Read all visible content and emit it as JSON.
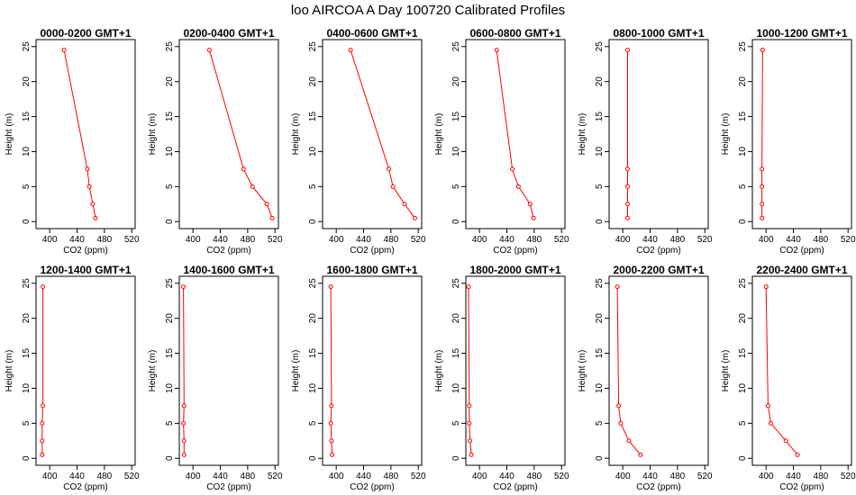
{
  "title": "loo AIRCOA A  Day 100720  Calibrated Profiles",
  "colors": {
    "series": "#ff0000",
    "axes": "#000000"
  },
  "chart_data": [
    {
      "type": "line",
      "title": "0000-0200 GMT+1",
      "xlabel": "CO2 (ppm)",
      "ylabel": "Height (m)",
      "xlim": [
        380,
        525
      ],
      "ylim": [
        -1,
        26
      ],
      "xticks": [
        400,
        440,
        480,
        520
      ],
      "yticks": [
        0,
        5,
        10,
        15,
        20,
        25
      ],
      "series": [
        {
          "points": [
            [
              421,
              24.5
            ],
            [
              455,
              7.5
            ],
            [
              458,
              5
            ],
            [
              463,
              2.5
            ],
            [
              467,
              0.5
            ]
          ]
        }
      ]
    },
    {
      "type": "line",
      "title": "0200-0400 GMT+1",
      "xlabel": "CO2 (ppm)",
      "ylabel": "Height (m)",
      "xlim": [
        380,
        525
      ],
      "ylim": [
        -1,
        26
      ],
      "xticks": [
        400,
        440,
        480,
        520
      ],
      "yticks": [
        0,
        5,
        10,
        15,
        20,
        25
      ],
      "series": [
        {
          "points": [
            [
              424,
              24.5
            ],
            [
              474,
              7.5
            ],
            [
              487,
              5
            ],
            [
              508,
              2.5
            ],
            [
              516,
              0.5
            ]
          ]
        }
      ]
    },
    {
      "type": "line",
      "title": "0400-0600 GMT+1",
      "xlabel": "CO2 (ppm)",
      "ylabel": "Height (m)",
      "xlim": [
        380,
        525
      ],
      "ylim": [
        -1,
        26
      ],
      "xticks": [
        400,
        440,
        480,
        520
      ],
      "yticks": [
        0,
        5,
        10,
        15,
        20,
        25
      ],
      "series": [
        {
          "points": [
            [
              421,
              24.5
            ],
            [
              477,
              7.5
            ],
            [
              483,
              5
            ],
            [
              500,
              2.5
            ],
            [
              515,
              0.5
            ]
          ]
        }
      ]
    },
    {
      "type": "line",
      "title": "0600-0800 GMT+1",
      "xlabel": "CO2 (ppm)",
      "ylabel": "Height (m)",
      "xlim": [
        380,
        525
      ],
      "ylim": [
        -1,
        26
      ],
      "xticks": [
        400,
        440,
        480,
        520
      ],
      "yticks": [
        0,
        5,
        10,
        15,
        20,
        25
      ],
      "series": [
        {
          "points": [
            [
              425,
              24.5
            ],
            [
              448,
              7.5
            ],
            [
              457,
              5
            ],
            [
              474,
              2.5
            ],
            [
              479,
              0.5
            ]
          ]
        }
      ]
    },
    {
      "type": "line",
      "title": "0800-1000 GMT+1",
      "xlabel": "CO2 (ppm)",
      "ylabel": "Height (m)",
      "xlim": [
        380,
        525
      ],
      "ylim": [
        -1,
        26
      ],
      "xticks": [
        400,
        440,
        480,
        520
      ],
      "yticks": [
        0,
        5,
        10,
        15,
        20,
        25
      ],
      "series": [
        {
          "points": [
            [
              407,
              24.5
            ],
            [
              407,
              7.5
            ],
            [
              407,
              5
            ],
            [
              407,
              2.5
            ],
            [
              407,
              0.5
            ]
          ]
        }
      ]
    },
    {
      "type": "line",
      "title": "1000-1200 GMT+1",
      "xlabel": "CO2 (ppm)",
      "ylabel": "Height (m)",
      "xlim": [
        380,
        525
      ],
      "ylim": [
        -1,
        26
      ],
      "xticks": [
        400,
        440,
        480,
        520
      ],
      "yticks": [
        0,
        5,
        10,
        15,
        20,
        25
      ],
      "series": [
        {
          "points": [
            [
              395,
              24.5
            ],
            [
              394,
              7.5
            ],
            [
              394,
              5
            ],
            [
              394,
              2.5
            ],
            [
              394,
              0.5
            ]
          ]
        }
      ]
    },
    {
      "type": "line",
      "title": "1200-1400 GMT+1",
      "xlabel": "CO2 (ppm)",
      "ylabel": "Height (m)",
      "xlim": [
        380,
        525
      ],
      "ylim": [
        -1,
        26
      ],
      "xticks": [
        400,
        440,
        480,
        520
      ],
      "yticks": [
        0,
        5,
        10,
        15,
        20,
        25
      ],
      "series": [
        {
          "points": [
            [
              390,
              24.5
            ],
            [
              390,
              7.5
            ],
            [
              389,
              5
            ],
            [
              389,
              2.5
            ],
            [
              389,
              0.5
            ]
          ]
        }
      ]
    },
    {
      "type": "line",
      "title": "1400-1600 GMT+1",
      "xlabel": "CO2 (ppm)",
      "ylabel": "Height (m)",
      "xlim": [
        380,
        525
      ],
      "ylim": [
        -1,
        26
      ],
      "xticks": [
        400,
        440,
        480,
        520
      ],
      "yticks": [
        0,
        5,
        10,
        15,
        20,
        25
      ],
      "series": [
        {
          "points": [
            [
              386,
              24.5
            ],
            [
              387,
              7.5
            ],
            [
              386,
              5
            ],
            [
              387,
              2.5
            ],
            [
              387,
              0.5
            ]
          ]
        }
      ]
    },
    {
      "type": "line",
      "title": "1600-1800 GMT+1",
      "xlabel": "CO2 (ppm)",
      "ylabel": "Height (m)",
      "xlim": [
        380,
        525
      ],
      "ylim": [
        -1,
        26
      ],
      "xticks": [
        400,
        440,
        480,
        520
      ],
      "yticks": [
        0,
        5,
        10,
        15,
        20,
        25
      ],
      "series": [
        {
          "points": [
            [
              392,
              24.5
            ],
            [
              393,
              7.5
            ],
            [
              392,
              5
            ],
            [
              393,
              2.5
            ],
            [
              394,
              0.5
            ]
          ]
        }
      ]
    },
    {
      "type": "line",
      "title": "1800-2000 GMT+1",
      "xlabel": "CO2 (ppm)",
      "ylabel": "Height (m)",
      "xlim": [
        380,
        525
      ],
      "ylim": [
        -1,
        26
      ],
      "xticks": [
        400,
        440,
        480,
        520
      ],
      "yticks": [
        0,
        5,
        10,
        15,
        20,
        25
      ],
      "series": [
        {
          "points": [
            [
              384,
              24.5
            ],
            [
              385,
              7.5
            ],
            [
              385,
              5
            ],
            [
              386,
              2.5
            ],
            [
              388,
              0.5
            ]
          ]
        }
      ]
    },
    {
      "type": "line",
      "title": "2000-2200 GMT+1",
      "xlabel": "CO2 (ppm)",
      "ylabel": "Height (m)",
      "xlim": [
        380,
        525
      ],
      "ylim": [
        -1,
        26
      ],
      "xticks": [
        400,
        440,
        480,
        520
      ],
      "yticks": [
        0,
        5,
        10,
        15,
        20,
        25
      ],
      "series": [
        {
          "points": [
            [
              392,
              24.5
            ],
            [
              394,
              7.5
            ],
            [
              397,
              5
            ],
            [
              409,
              2.5
            ],
            [
              426,
              0.5
            ]
          ]
        }
      ]
    },
    {
      "type": "line",
      "title": "2200-2400 GMT+1",
      "xlabel": "CO2 (ppm)",
      "ylabel": "Height (m)",
      "xlim": [
        380,
        525
      ],
      "ylim": [
        -1,
        26
      ],
      "xticks": [
        400,
        440,
        480,
        520
      ],
      "yticks": [
        0,
        5,
        10,
        15,
        20,
        25
      ],
      "series": [
        {
          "points": [
            [
              400,
              24.5
            ],
            [
              403,
              7.5
            ],
            [
              407,
              5
            ],
            [
              429,
              2.5
            ],
            [
              446,
              0.5
            ]
          ]
        }
      ]
    }
  ]
}
